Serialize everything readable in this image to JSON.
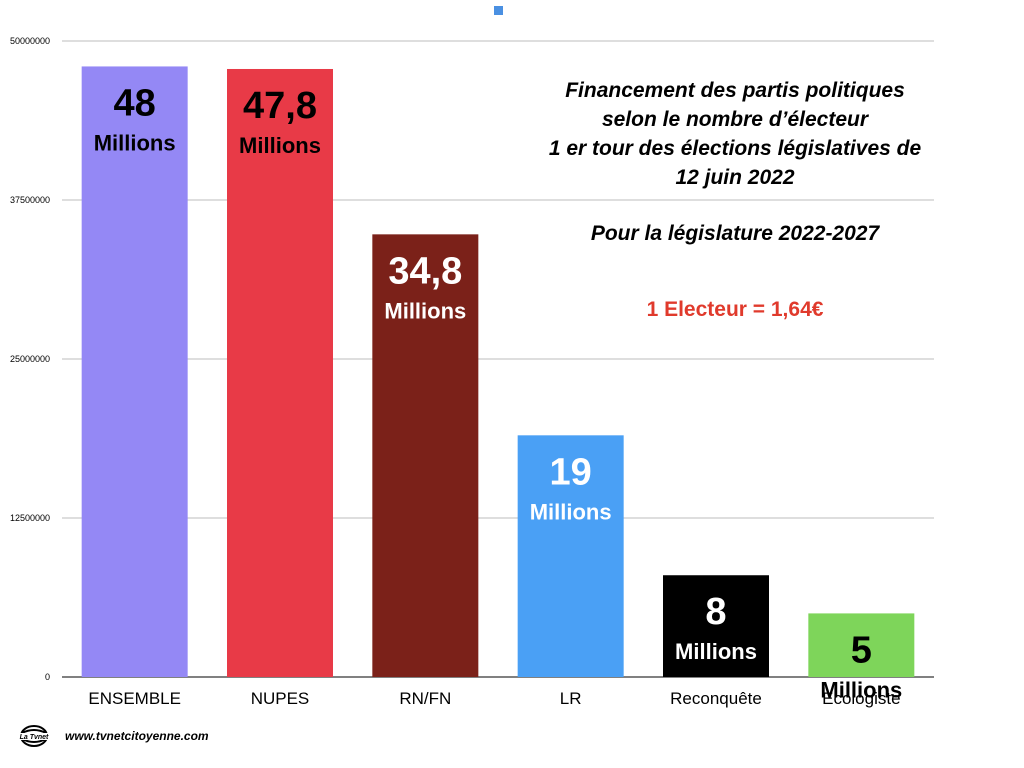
{
  "chart_data": {
    "type": "bar",
    "categories": [
      "ENSEMBLE",
      "NUPES",
      "RN/FN",
      "LR",
      "Reconquête",
      "Ecologiste"
    ],
    "values": [
      48000000,
      47800000,
      34800000,
      19000000,
      8000000,
      5000000
    ],
    "bar_colors": [
      "#9488f5",
      "#e83a47",
      "#7b2119",
      "#4aa0f5",
      "#000000",
      "#7ed55a"
    ],
    "big_labels": [
      "48",
      "47,8",
      "34,8",
      "19",
      "8",
      "5"
    ],
    "unit_labels": [
      "Millions",
      "Millions",
      "Millions",
      "Millions",
      "Millions",
      "Millions"
    ],
    "label_colors": [
      "#000000",
      "#000000",
      "#ffffff",
      "#ffffff",
      "#ffffff",
      "#000000"
    ],
    "yticks": [
      0,
      12500000,
      25000000,
      37500000,
      50000000
    ],
    "ytick_labels": [
      "0",
      "12500000",
      "25000000",
      "37500000",
      "50000000"
    ],
    "ylim": [
      0,
      50000000
    ],
    "grid": true,
    "legend_color": "#4a90e2",
    "legend_placement": "top-center",
    "title_lines": [
      "Financement des partis politiques",
      "selon le nombre d’électeur",
      "1 er tour des élections législatives de",
      "12 juin 2022"
    ],
    "subtitle": "Pour la législature 2022-2027",
    "annotation": "1 Electeur = 1,64€",
    "annotation_color": "#e03a2c"
  },
  "footer": {
    "logo_text": "La Tvnet",
    "website": "www.tvnetcitoyenne.com"
  }
}
